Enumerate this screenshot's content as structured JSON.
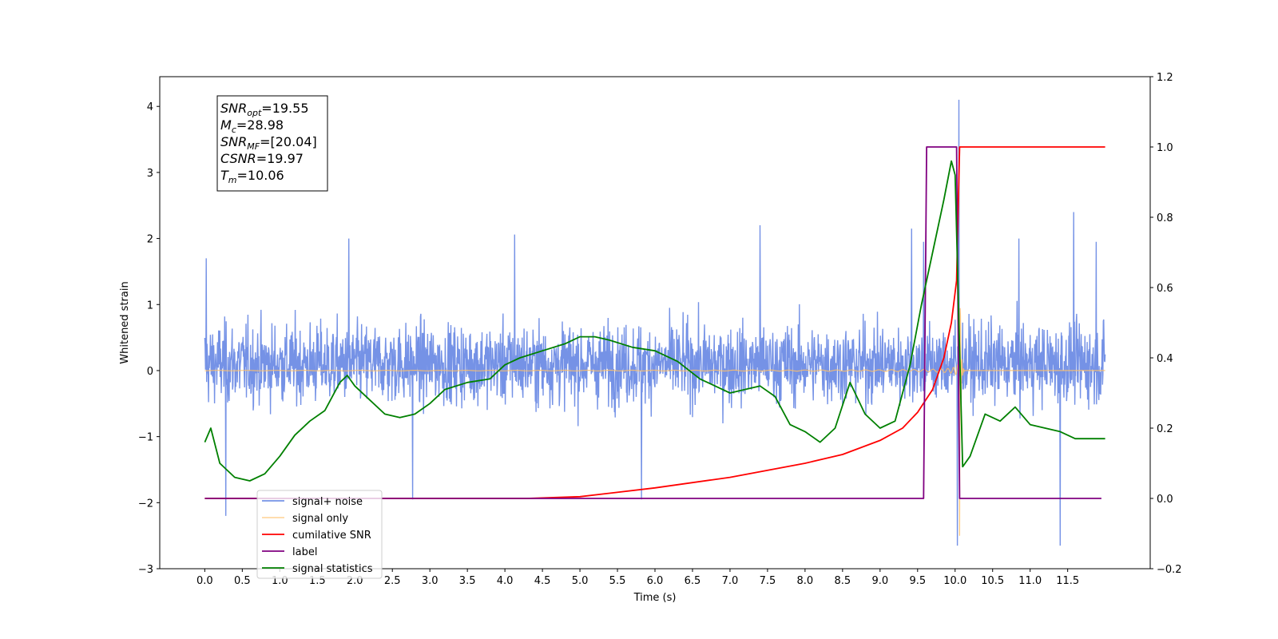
{
  "chart_data": {
    "type": "line",
    "title": "",
    "xlabel": "Time (s)",
    "ylabel": "Whitened strain",
    "xlim": [
      -0.6,
      12.6
    ],
    "ylim_left": [
      -3,
      4.45
    ],
    "ylim_right": [
      -0.2,
      1.2
    ],
    "x_ticks": [
      0.0,
      0.5,
      1.0,
      1.5,
      2.0,
      2.5,
      3.0,
      3.5,
      4.0,
      4.5,
      5.0,
      5.5,
      6.0,
      6.5,
      7.0,
      7.5,
      8.0,
      8.5,
      9.0,
      9.5,
      10.0,
      10.5,
      11.0,
      11.5
    ],
    "x_tick_labels": [
      "0.0",
      "0.5",
      "1.0",
      "1.5",
      "2.0",
      "2.5",
      "3.0",
      "3.5",
      "4.0",
      "4.5",
      "5.0",
      "5.5",
      "6.0",
      "6.5",
      "7.0",
      "7.5",
      "8.0",
      "8.5",
      "9.0",
      "9.5",
      "10.0",
      "10.5",
      "11.0",
      "11.5"
    ],
    "left_ticks": [
      -3,
      -2,
      -1,
      0,
      1,
      2,
      3,
      4
    ],
    "left_tick_labels": [
      "−3",
      "−2",
      "−1",
      "0",
      "1",
      "2",
      "3",
      "4"
    ],
    "right_ticks": [
      -0.2,
      0.0,
      0.2,
      0.4,
      0.6,
      0.8,
      1.0,
      1.2
    ],
    "right_tick_labels": [
      "−0.2",
      "0.0",
      "0.2",
      "0.4",
      "0.6",
      "0.8",
      "1.0",
      "1.2"
    ],
    "grid": false,
    "legend_position": "lower-left",
    "info_box": {
      "lines": [
        {
          "sym": "SNR",
          "sub": "opt",
          "val": "=19.55"
        },
        {
          "sym": "M",
          "sub": "c",
          "val": "=28.98"
        },
        {
          "sym": "SNR",
          "sub": "MF",
          "val": "=[20.04]"
        },
        {
          "sym": "CSNR",
          "sub": "",
          "val": "=19.97"
        },
        {
          "sym": "T",
          "sub": "m",
          "val": "=10.06"
        }
      ]
    },
    "series": [
      {
        "name": "signal+ noise",
        "color": "#7592e6",
        "axis": "left",
        "style": "noise",
        "x_range": [
          0.0,
          12.0
        ],
        "band": [
          -0.85,
          1.05
        ],
        "spikes": [
          [
            0.02,
            1.7
          ],
          [
            0.28,
            -2.2
          ],
          [
            1.92,
            2.0
          ],
          [
            2.77,
            -1.95
          ],
          [
            4.13,
            2.06
          ],
          [
            5.82,
            -1.95
          ],
          [
            7.4,
            2.2
          ],
          [
            9.42,
            2.15
          ],
          [
            9.58,
            1.95
          ],
          [
            10.03,
            -2.65
          ],
          [
            10.05,
            4.1
          ],
          [
            10.85,
            2.0
          ],
          [
            11.4,
            -2.65
          ],
          [
            11.58,
            2.4
          ],
          [
            11.88,
            1.95
          ]
        ]
      },
      {
        "name": "signal only",
        "color": "#ffbf66",
        "axis": "left",
        "style": "chirp",
        "x_range": [
          0.0,
          12.0
        ],
        "merger_time": 10.06
      },
      {
        "name": "cumilative SNR",
        "color": "#ff0000",
        "axis": "right",
        "x": [
          0.0,
          4.3,
          5.0,
          6.0,
          7.0,
          8.0,
          8.5,
          9.0,
          9.3,
          9.5,
          9.7,
          9.85,
          9.95,
          10.02,
          10.06,
          10.1,
          12.0
        ],
        "y": [
          0.0,
          0.0,
          0.005,
          0.03,
          0.06,
          0.1,
          0.125,
          0.165,
          0.2,
          0.245,
          0.31,
          0.4,
          0.5,
          0.62,
          1.0,
          1.0,
          1.0
        ]
      },
      {
        "name": "label",
        "color": "#800080",
        "axis": "right",
        "x": [
          0.0,
          9.58,
          9.62,
          10.02,
          10.06,
          11.95
        ],
        "y": [
          0.0,
          0.0,
          1.0,
          1.0,
          0.0,
          0.0
        ]
      },
      {
        "name": "signal statistics",
        "color": "#008000",
        "axis": "right",
        "x": [
          0.0,
          0.08,
          0.2,
          0.4,
          0.6,
          0.8,
          1.0,
          1.2,
          1.4,
          1.6,
          1.8,
          1.9,
          2.0,
          2.2,
          2.4,
          2.6,
          2.8,
          3.0,
          3.2,
          3.5,
          3.8,
          4.0,
          4.2,
          4.5,
          4.8,
          5.0,
          5.2,
          5.4,
          5.7,
          6.0,
          6.3,
          6.6,
          6.8,
          7.0,
          7.2,
          7.4,
          7.6,
          7.8,
          8.0,
          8.2,
          8.4,
          8.6,
          8.8,
          9.0,
          9.2,
          9.4,
          9.55,
          9.7,
          9.85,
          9.95,
          10.0,
          10.05,
          10.1,
          10.2,
          10.4,
          10.6,
          10.8,
          11.0,
          11.2,
          11.4,
          11.6,
          11.8,
          12.0
        ],
        "y": [
          0.16,
          0.2,
          0.1,
          0.06,
          0.05,
          0.07,
          0.12,
          0.18,
          0.22,
          0.25,
          0.33,
          0.35,
          0.32,
          0.28,
          0.24,
          0.23,
          0.24,
          0.27,
          0.31,
          0.33,
          0.34,
          0.38,
          0.4,
          0.42,
          0.44,
          0.46,
          0.46,
          0.45,
          0.43,
          0.42,
          0.39,
          0.34,
          0.32,
          0.3,
          0.31,
          0.32,
          0.29,
          0.21,
          0.19,
          0.16,
          0.2,
          0.33,
          0.24,
          0.2,
          0.22,
          0.38,
          0.55,
          0.7,
          0.85,
          0.96,
          0.92,
          0.5,
          0.09,
          0.12,
          0.24,
          0.22,
          0.26,
          0.21,
          0.2,
          0.19,
          0.17,
          0.17,
          0.17
        ]
      }
    ]
  }
}
